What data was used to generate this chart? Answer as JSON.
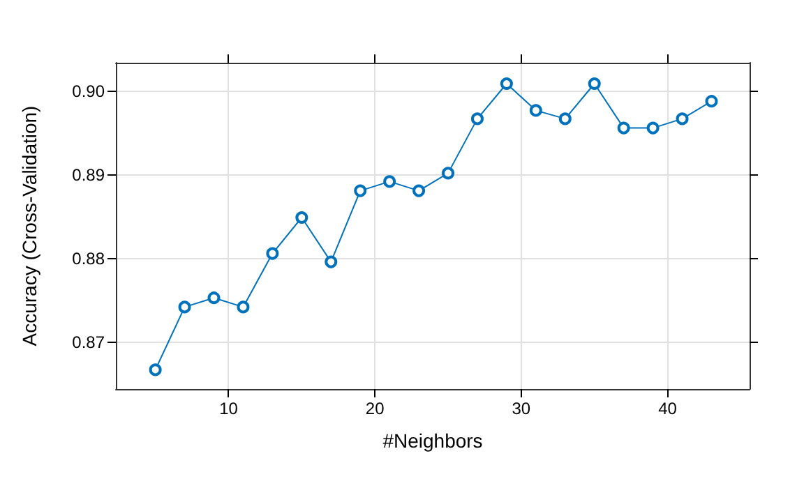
{
  "chart_data": {
    "type": "line",
    "xlabel": "#Neighbors",
    "ylabel": "Accuracy (Cross-Validation)",
    "x": [
      5,
      7,
      9,
      11,
      13,
      15,
      17,
      19,
      21,
      23,
      25,
      27,
      29,
      31,
      33,
      35,
      37,
      39,
      41,
      43
    ],
    "series": [
      {
        "color": "#0072bd",
        "values": [
          0.8667,
          0.8742,
          0.8753,
          0.8742,
          0.8806,
          0.8849,
          0.8796,
          0.8881,
          0.8892,
          0.8881,
          0.8902,
          0.8967,
          0.9009,
          0.8977,
          0.8967,
          0.9009,
          0.8956,
          0.8956,
          0.8967,
          0.8988
        ]
      }
    ],
    "xlim": [
      2.3,
      45.6
    ],
    "xticks": [
      10,
      20,
      30,
      40
    ],
    "ylim": [
      0.8644,
      0.9034
    ],
    "yticks": [
      0.87,
      0.88,
      0.89,
      {
        "value": 0.9,
        "label": "0.90"
      }
    ],
    "grid": true,
    "marker": "circle",
    "line_style": "solid"
  }
}
